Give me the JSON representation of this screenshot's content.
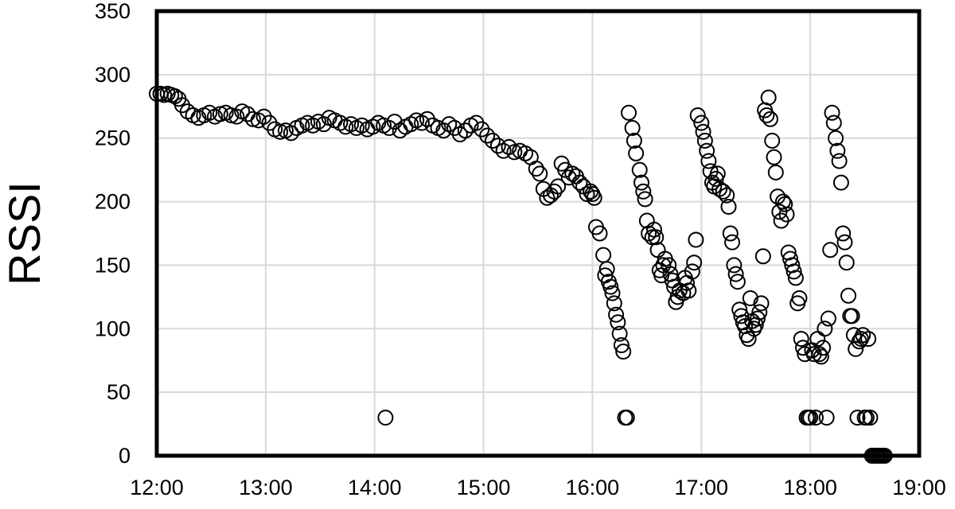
{
  "chart_data": {
    "type": "scatter",
    "title": "",
    "xlabel": "",
    "ylabel": "RSSI",
    "x_unit": "time (HH:MM)",
    "xlim": [
      "12:00",
      "19:00"
    ],
    "ylim": [
      0,
      350
    ],
    "x_ticks": [
      "12:00",
      "13:00",
      "14:00",
      "15:00",
      "16:00",
      "17:00",
      "18:00",
      "19:00"
    ],
    "y_ticks": [
      0,
      50,
      100,
      150,
      200,
      250,
      300,
      350
    ],
    "grid": true,
    "legend": "none",
    "marker": "open-circle",
    "series": [
      {
        "points": [
          [
            "12:00",
            285
          ],
          [
            "12:02",
            285
          ],
          [
            "12:04",
            284
          ],
          [
            "12:06",
            285
          ],
          [
            "12:08",
            284
          ],
          [
            "12:10",
            283
          ],
          [
            "12:12",
            281
          ],
          [
            "12:14",
            276
          ],
          [
            "12:17",
            271
          ],
          [
            "12:20",
            268
          ],
          [
            "12:23",
            266
          ],
          [
            "12:26",
            268
          ],
          [
            "12:29",
            270
          ],
          [
            "12:32",
            267
          ],
          [
            "12:35",
            269
          ],
          [
            "12:38",
            270
          ],
          [
            "12:41",
            268
          ],
          [
            "12:44",
            267
          ],
          [
            "12:47",
            271
          ],
          [
            "12:50",
            269
          ],
          [
            "12:53",
            265
          ],
          [
            "12:56",
            264
          ],
          [
            "12:59",
            267
          ],
          [
            "13:02",
            262
          ],
          [
            "13:05",
            257
          ],
          [
            "13:08",
            255
          ],
          [
            "13:11",
            256
          ],
          [
            "13:14",
            254
          ],
          [
            "13:17",
            258
          ],
          [
            "13:20",
            260
          ],
          [
            "13:23",
            262
          ],
          [
            "13:26",
            260
          ],
          [
            "13:29",
            263
          ],
          [
            "13:32",
            261
          ],
          [
            "13:35",
            266
          ],
          [
            "13:38",
            264
          ],
          [
            "13:41",
            262
          ],
          [
            "13:44",
            259
          ],
          [
            "13:47",
            261
          ],
          [
            "13:50",
            258
          ],
          [
            "13:53",
            260
          ],
          [
            "13:56",
            257
          ],
          [
            "13:59",
            259
          ],
          [
            "14:02",
            262
          ],
          [
            "14:05",
            260
          ],
          [
            "14:08",
            258
          ],
          [
            "14:11",
            263
          ],
          [
            "14:14",
            256
          ],
          [
            "14:17",
            259
          ],
          [
            "14:20",
            261
          ],
          [
            "14:23",
            264
          ],
          [
            "14:26",
            262
          ],
          [
            "14:29",
            265
          ],
          [
            "14:32",
            260
          ],
          [
            "14:35",
            258
          ],
          [
            "14:38",
            256
          ],
          [
            "14:41",
            261
          ],
          [
            "14:44",
            258
          ],
          [
            "14:47",
            253
          ],
          [
            "14:50",
            256
          ],
          [
            "14:53",
            260
          ],
          [
            "14:56",
            262
          ],
          [
            "14:59",
            257
          ],
          [
            "15:02",
            252
          ],
          [
            "15:05",
            248
          ],
          [
            "15:08",
            244
          ],
          [
            "15:11",
            240
          ],
          [
            "15:14",
            243
          ],
          [
            "15:17",
            239
          ],
          [
            "15:20",
            240
          ],
          [
            "15:23",
            238
          ],
          [
            "15:26",
            235
          ],
          [
            "14:06",
            30
          ],
          [
            "15:29",
            226
          ],
          [
            "15:31",
            222
          ],
          [
            "15:33",
            210
          ],
          [
            "15:35",
            203
          ],
          [
            "15:37",
            205
          ],
          [
            "15:39",
            208
          ],
          [
            "15:41",
            212
          ],
          [
            "15:43",
            230
          ],
          [
            "15:45",
            225
          ],
          [
            "15:47",
            219
          ],
          [
            "15:49",
            222
          ],
          [
            "15:51",
            220
          ],
          [
            "15:53",
            215
          ],
          [
            "15:55",
            212
          ],
          [
            "15:57",
            206
          ],
          [
            "15:59",
            208
          ],
          [
            "16:00",
            206
          ],
          [
            "16:01",
            203
          ],
          [
            "16:02",
            180
          ],
          [
            "16:04",
            175
          ],
          [
            "16:06",
            158
          ],
          [
            "16:07",
            142
          ],
          [
            "16:08",
            147
          ],
          [
            "16:09",
            137
          ],
          [
            "16:10",
            133
          ],
          [
            "16:11",
            128
          ],
          [
            "16:12",
            120
          ],
          [
            "16:13",
            111
          ],
          [
            "16:14",
            105
          ],
          [
            "16:15",
            96
          ],
          [
            "16:16",
            87
          ],
          [
            "16:17",
            82
          ],
          [
            "16:18",
            30
          ],
          [
            "16:19",
            30
          ],
          [
            "16:20",
            270
          ],
          [
            "16:22",
            258
          ],
          [
            "16:23",
            248
          ],
          [
            "16:24",
            238
          ],
          [
            "16:26",
            225
          ],
          [
            "16:27",
            215
          ],
          [
            "16:28",
            208
          ],
          [
            "16:29",
            202
          ],
          [
            "16:30",
            185
          ],
          [
            "16:31",
            175
          ],
          [
            "16:33",
            172
          ],
          [
            "16:34",
            178
          ],
          [
            "16:35",
            172
          ],
          [
            "16:36",
            162
          ],
          [
            "16:37",
            146
          ],
          [
            "16:38",
            142
          ],
          [
            "16:39",
            150
          ],
          [
            "16:40",
            155
          ],
          [
            "16:42",
            150
          ],
          [
            "16:43",
            143
          ],
          [
            "16:44",
            138
          ],
          [
            "16:45",
            133
          ],
          [
            "16:46",
            121
          ],
          [
            "16:47",
            125
          ],
          [
            "16:48",
            130
          ],
          [
            "16:50",
            128
          ],
          [
            "16:51",
            140
          ],
          [
            "16:52",
            136
          ],
          [
            "16:53",
            130
          ],
          [
            "16:55",
            145
          ],
          [
            "16:56",
            152
          ],
          [
            "16:57",
            170
          ],
          [
            "16:58",
            268
          ],
          [
            "17:00",
            262
          ],
          [
            "17:01",
            255
          ],
          [
            "17:02",
            248
          ],
          [
            "17:03",
            240
          ],
          [
            "17:04",
            232
          ],
          [
            "17:05",
            224
          ],
          [
            "17:06",
            215
          ],
          [
            "17:07",
            212
          ],
          [
            "17:08",
            218
          ],
          [
            "17:09",
            222
          ],
          [
            "17:10",
            210
          ],
          [
            "17:12",
            208
          ],
          [
            "17:14",
            205
          ],
          [
            "17:15",
            196
          ],
          [
            "17:16",
            175
          ],
          [
            "17:17",
            168
          ],
          [
            "17:18",
            150
          ],
          [
            "17:19",
            143
          ],
          [
            "17:20",
            137
          ],
          [
            "17:21",
            115
          ],
          [
            "17:22",
            110
          ],
          [
            "17:23",
            105
          ],
          [
            "17:24",
            102
          ],
          [
            "17:25",
            95
          ],
          [
            "17:26",
            92
          ],
          [
            "17:27",
            124
          ],
          [
            "17:28",
            106
          ],
          [
            "17:29",
            100
          ],
          [
            "17:30",
            103
          ],
          [
            "17:31",
            108
          ],
          [
            "17:32",
            113
          ],
          [
            "17:33",
            120
          ],
          [
            "17:34",
            157
          ],
          [
            "17:35",
            272
          ],
          [
            "17:36",
            268
          ],
          [
            "17:37",
            282
          ],
          [
            "17:38",
            265
          ],
          [
            "17:39",
            248
          ],
          [
            "17:40",
            235
          ],
          [
            "17:41",
            223
          ],
          [
            "17:42",
            204
          ],
          [
            "17:43",
            192
          ],
          [
            "17:44",
            185
          ],
          [
            "17:45",
            200
          ],
          [
            "17:46",
            198
          ],
          [
            "17:47",
            190
          ],
          [
            "17:48",
            160
          ],
          [
            "17:49",
            155
          ],
          [
            "17:50",
            150
          ],
          [
            "17:51",
            145
          ],
          [
            "17:52",
            140
          ],
          [
            "17:53",
            120
          ],
          [
            "17:54",
            124
          ],
          [
            "17:55",
            92
          ],
          [
            "17:56",
            85
          ],
          [
            "17:57",
            80
          ],
          [
            "17:58",
            30
          ],
          [
            "17:59",
            30
          ],
          [
            "18:00",
            30
          ],
          [
            "18:01",
            83
          ],
          [
            "18:02",
            80
          ],
          [
            "18:03",
            30
          ],
          [
            "18:04",
            92
          ],
          [
            "18:05",
            80
          ],
          [
            "18:06",
            78
          ],
          [
            "18:07",
            85
          ],
          [
            "18:08",
            100
          ],
          [
            "18:09",
            30
          ],
          [
            "18:10",
            108
          ],
          [
            "18:11",
            162
          ],
          [
            "18:12",
            270
          ],
          [
            "18:13",
            262
          ],
          [
            "18:14",
            250
          ],
          [
            "18:15",
            240
          ],
          [
            "18:16",
            232
          ],
          [
            "18:17",
            215
          ],
          [
            "18:18",
            175
          ],
          [
            "18:19",
            168
          ],
          [
            "18:20",
            152
          ],
          [
            "18:21",
            126
          ],
          [
            "18:22",
            110
          ],
          [
            "18:23",
            110
          ],
          [
            "18:24",
            95
          ],
          [
            "18:25",
            84
          ],
          [
            "18:26",
            30
          ],
          [
            "18:27",
            90
          ],
          [
            "18:28",
            92
          ],
          [
            "18:29",
            95
          ],
          [
            "18:30",
            30
          ],
          [
            "18:31",
            30
          ],
          [
            "18:32",
            92
          ],
          [
            "18:33",
            30
          ],
          [
            "18:34",
            0
          ],
          [
            "18:35",
            0
          ],
          [
            "18:36",
            0
          ],
          [
            "18:37",
            0
          ],
          [
            "18:38",
            0
          ],
          [
            "18:39",
            0
          ],
          [
            "18:40",
            0
          ],
          [
            "18:41",
            0
          ]
        ]
      }
    ]
  }
}
